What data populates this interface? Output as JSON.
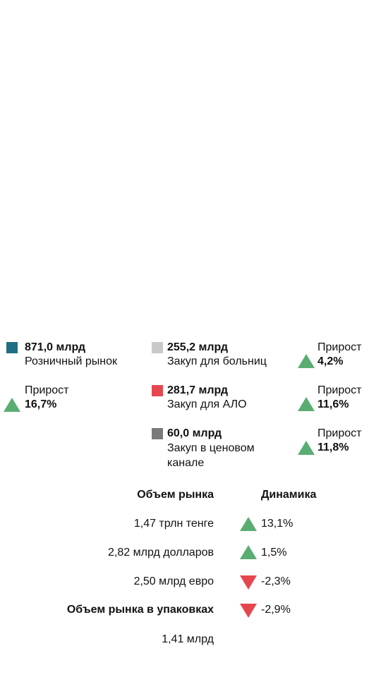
{
  "colors": {
    "retail": "#1f6e84",
    "hospital": "#c9c9c9",
    "alo": "#e5474f",
    "price_channel": "#7a7a7a",
    "up": "#5aad72",
    "down": "#e5474f"
  },
  "segments": {
    "retail": {
      "value": "871,0 млрд",
      "label": "Розничный рынок",
      "growth_label": "Прирост",
      "growth_value": "16,7%",
      "icon": "triangle-up-icon"
    },
    "hospital": {
      "value": "255,2 млрд",
      "label": "Закуп для больниц",
      "growth_label": "Прирост",
      "growth_value": "4,2%",
      "icon": "triangle-up-icon"
    },
    "alo": {
      "value": "281,7 млрд",
      "label": "Закуп для АЛО",
      "growth_label": "Прирост",
      "growth_value": "11,6%",
      "icon": "triangle-up-icon"
    },
    "price_channel": {
      "value": "60,0 млрд",
      "label": "Закуп в ценовом канале",
      "growth_label": "Прирост",
      "growth_value": "11,8%",
      "icon": "triangle-up-icon"
    }
  },
  "market": {
    "header_volume": "Объем рынка",
    "header_dynamics": "Динамика",
    "rows": [
      {
        "volume": "1,47 трлн тенге",
        "dynamics": "13,1%",
        "direction": "up"
      },
      {
        "volume": "2,82 млрд долларов",
        "dynamics": "1,5%",
        "direction": "up"
      },
      {
        "volume": "2,50 млрд евро",
        "dynamics": "-2,3%",
        "direction": "down"
      }
    ],
    "packages_header": "Объем рынка в упаковках",
    "packages_dynamics": "-2,9%",
    "packages_direction": "down",
    "packages_volume": "1,41 млрд"
  }
}
